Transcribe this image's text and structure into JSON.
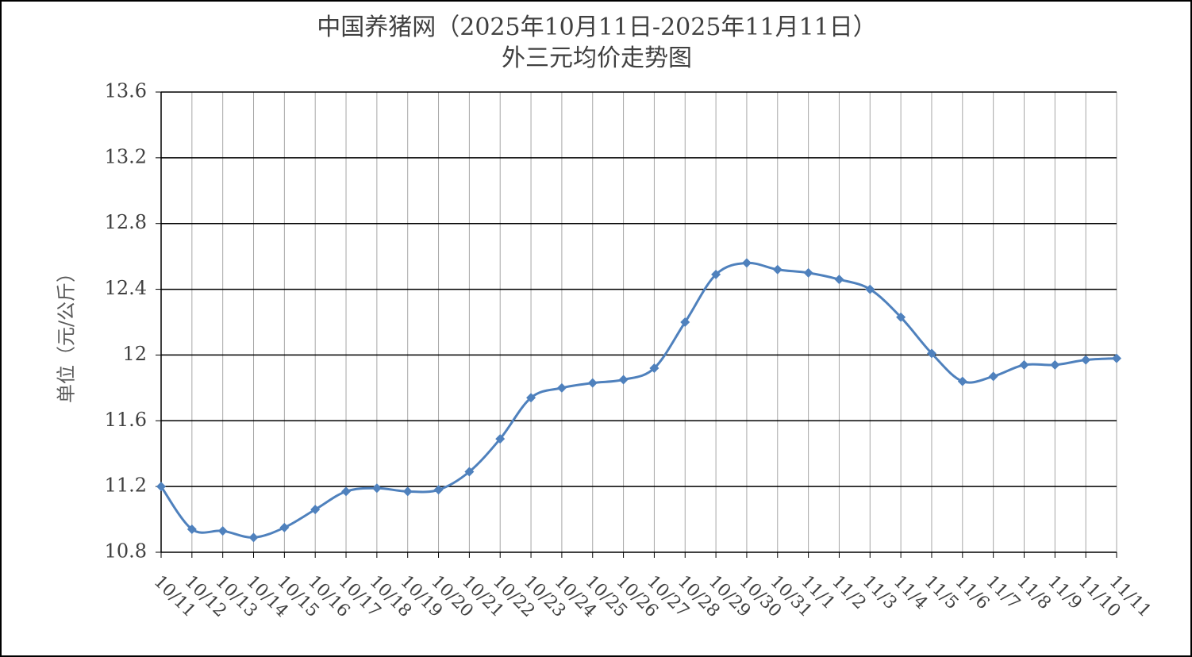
{
  "chart_data": {
    "type": "line",
    "title": "中国养猪网（2025年10月11日-2025年11月11日）",
    "subtitle": "外三元均价走势图",
    "y_label": "单位（元/公斤）",
    "categories": [
      "10/11",
      "10/12",
      "10/13",
      "10/14",
      "10/15",
      "10/16",
      "10/17",
      "10/18",
      "10/19",
      "10/20",
      "10/21",
      "10/22",
      "10/23",
      "10/24",
      "10/25",
      "10/26",
      "10/27",
      "10/28",
      "10/29",
      "10/30",
      "10/31",
      "11/1",
      "11/2",
      "11/3",
      "11/4",
      "11/5",
      "11/6",
      "11/7",
      "11/8",
      "11/9",
      "11/10",
      "11/11"
    ],
    "series": [
      {
        "name": "外三元均价",
        "color": "#4f81bd",
        "values": [
          11.2,
          10.94,
          10.93,
          10.89,
          10.95,
          11.06,
          11.17,
          11.19,
          11.17,
          11.18,
          11.29,
          11.49,
          11.74,
          11.8,
          11.83,
          11.85,
          11.92,
          12.2,
          12.49,
          12.56,
          12.52,
          12.5,
          12.46,
          12.4,
          12.23,
          12.01,
          11.84,
          11.87,
          11.94,
          11.94,
          11.97,
          11.98
        ]
      }
    ],
    "ylim": [
      10.8,
      13.6
    ],
    "yticks": [
      10.8,
      11.2,
      11.6,
      12,
      12.4,
      12.8,
      13.2,
      13.6
    ],
    "grid": true
  }
}
